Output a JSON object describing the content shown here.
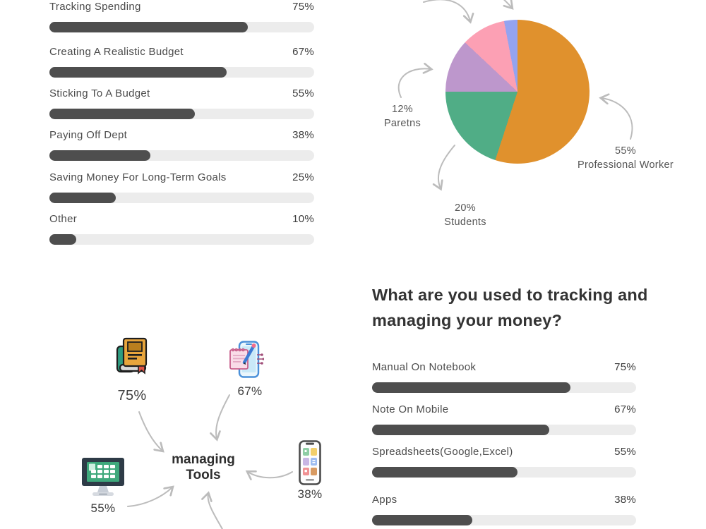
{
  "palette": {
    "bar_fill": "#4e4e4e",
    "bar_track": "#ececec",
    "arrow": "#bcbcbc",
    "pie_orange": "#E0912D",
    "pie_green": "#50AD86",
    "pie_purple": "#BD97CC",
    "pie_pink": "#FCA0B4",
    "pie_blue": "#94A3F0"
  },
  "chart_data": [
    {
      "id": "challenges_bar",
      "type": "bar",
      "title": "",
      "unit": "%",
      "xlim": [
        0,
        100
      ],
      "items": [
        {
          "label": "Tracking Spending",
          "value": 75,
          "display": "75%"
        },
        {
          "label": "Creating A Realistic Budget",
          "value": 67,
          "display": "67%"
        },
        {
          "label": "Sticking To A Budget",
          "value": 55,
          "display": "55%"
        },
        {
          "label": "Paying Off Dept",
          "value": 38,
          "display": "38%"
        },
        {
          "label": "Saving Money For Long-Term Goals",
          "value": 25,
          "display": "25%"
        },
        {
          "label": "Other",
          "value": 10,
          "display": "10%"
        }
      ]
    },
    {
      "id": "respondents_pie",
      "type": "pie",
      "slices": [
        {
          "label": "Professional Worker",
          "pct_label": "55%",
          "value": 55,
          "color": "#E0912D"
        },
        {
          "label": "Students",
          "pct_label": "20%",
          "value": 20,
          "color": "#50AD86"
        },
        {
          "label": "Paretns",
          "pct_label": "12%",
          "value": 12,
          "color": "#BD97CC"
        },
        {
          "label": "",
          "pct_label": "",
          "value": 10,
          "color": "#FCA0B4"
        },
        {
          "label": "",
          "pct_label": "",
          "value": 3,
          "color": "#94A3F0"
        }
      ],
      "legend_position": "callout-arrows"
    },
    {
      "id": "tools_bar",
      "type": "bar",
      "title_line1": "What are you used to tracking and",
      "title_line2": "managing your money?",
      "unit": "%",
      "xlim": [
        0,
        100
      ],
      "items": [
        {
          "label": "Manual On Notebook",
          "value": 75,
          "display": "75%"
        },
        {
          "label": "Note On Mobile",
          "value": 67,
          "display": "67%"
        },
        {
          "label": "Spreadsheets(Google,Excel)",
          "value": 55,
          "display": "55%"
        },
        {
          "label": "Apps",
          "value": 38,
          "display": "38%"
        }
      ]
    },
    {
      "id": "tools_diagram",
      "type": "diagram",
      "center_line1": "managing",
      "center_line2": "Tools",
      "nodes": [
        {
          "icon": "notebook-books-icon",
          "pct": "75%"
        },
        {
          "icon": "phone-notes-icon",
          "pct": "67%"
        },
        {
          "icon": "desktop-spreadsheet-icon",
          "pct": "55%"
        },
        {
          "icon": "phone-apps-icon",
          "pct": "38%"
        }
      ]
    }
  ]
}
